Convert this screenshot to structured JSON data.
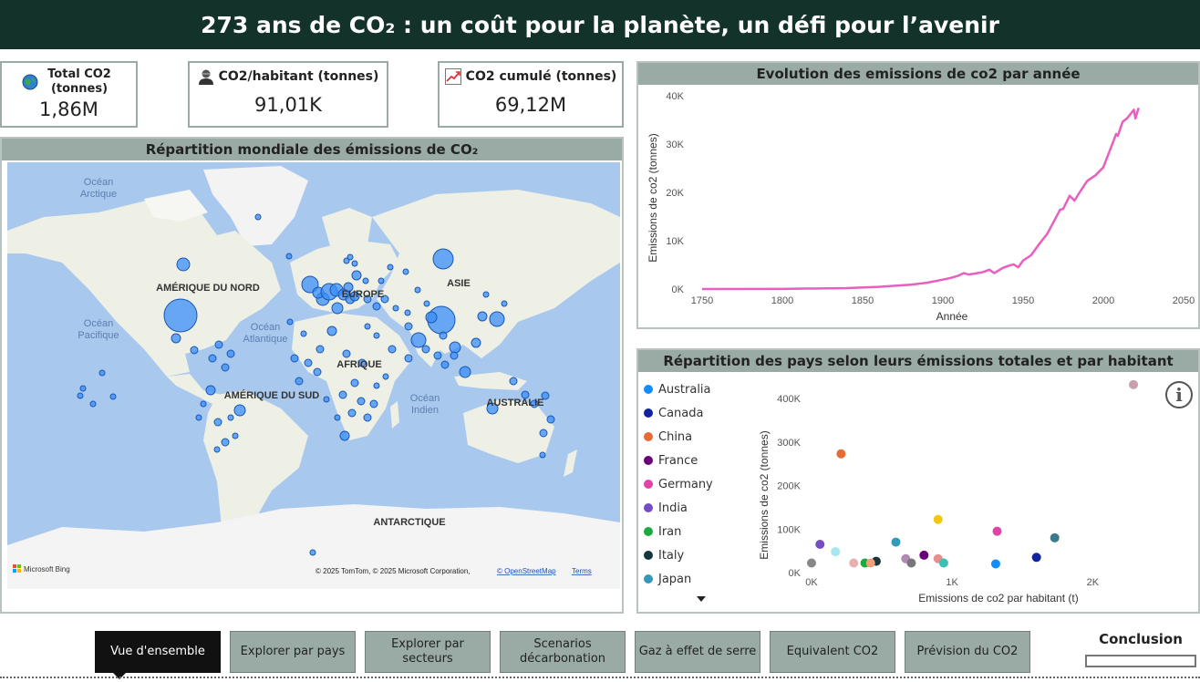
{
  "header": {
    "title": "273 ans de CO₂ : un coût pour la planète, un défi pour l’avenir"
  },
  "kpis": [
    {
      "label": "Total CO2 (tonnes)",
      "value": "1,86M",
      "icon": "globe-icon"
    },
    {
      "label": "CO2/habitant (tonnes)",
      "value": "91,01K",
      "icon": "person-icon"
    },
    {
      "label": "CO2 cumulé (tonnes)",
      "value": "69,12M",
      "icon": "chart-up-icon"
    }
  ],
  "map": {
    "title": "Répartition mondiale des émissions de CO₂",
    "labels": {
      "ocean_arctique": "Océan Arctique",
      "ocean_pacifique": "Océan Pacifique",
      "ocean_atlantique": "Océan Atlantique",
      "ocean_indien": "Océan Indien",
      "amerique_nord": "AMÉRIQUE DU NORD",
      "amerique_sud": "AMÉRIQUE DU SUD",
      "europe": "EUROPE",
      "afrique": "AFRIQUE",
      "asie": "ASIE",
      "australie": "AUSTRALIE",
      "antarctique": "ANTARCTIQUE"
    },
    "attribution": "© 2025 TomTom, © 2025 Microsoft Corporation,",
    "osm_link": "© OpenStreetMap",
    "terms_link": "Terms",
    "bing_logo": "Microsoft Bing"
  },
  "line_chart": {
    "title": "Evolution des emissions de co2 par année"
  },
  "scatter_chart": {
    "title": "Répartition des pays selon leurs émissions totales et par habitant"
  },
  "chart_data": [
    {
      "type": "line",
      "title": "Evolution des emissions de co2 par année",
      "xlabel": "Année",
      "ylabel": "Emissions de co2 (tonnes)",
      "xlim": [
        1750,
        2050
      ],
      "ylim": [
        0,
        40000
      ],
      "x_ticks": [
        "1750",
        "1800",
        "1850",
        "1900",
        "1950",
        "2000",
        "2050"
      ],
      "y_ticks": [
        "0K",
        "10K",
        "20K",
        "30K",
        "40K"
      ],
      "color": "#e75fbf",
      "x": [
        1750,
        1800,
        1840,
        1860,
        1880,
        1890,
        1900,
        1905,
        1910,
        1913,
        1916,
        1920,
        1925,
        1929,
        1932,
        1937,
        1940,
        1944,
        1947,
        1950,
        1955,
        1960,
        1965,
        1970,
        1973,
        1975,
        1979,
        1982,
        1986,
        1990,
        1995,
        2000,
        2005,
        2008,
        2009,
        2012,
        2015,
        2019,
        2020,
        2022
      ],
      "y": [
        10,
        30,
        200,
        450,
        900,
        1300,
        1950,
        2300,
        2800,
        3300,
        3000,
        3200,
        3500,
        4000,
        3300,
        4300,
        4700,
        5100,
        4500,
        5900,
        7000,
        9300,
        11400,
        14500,
        16400,
        16600,
        19300,
        18300,
        20400,
        22400,
        23500,
        25200,
        29500,
        32100,
        31700,
        34600,
        35400,
        37100,
        35300,
        37500
      ]
    },
    {
      "type": "scatter",
      "title": "Répartition des pays selon leurs émissions totales et par habitant",
      "xlabel": "Emissions de co2 par habitant (t)",
      "ylabel": "Emissions de co2 (tonnes)",
      "xlim": [
        0,
        2400
      ],
      "ylim": [
        0,
        440000
      ],
      "x_ticks": [
        "0K",
        "1K",
        "2K"
      ],
      "y_ticks": [
        "0K",
        "100K",
        "200K",
        "300K",
        "400K"
      ],
      "legend": [
        {
          "name": "Australia",
          "color": "#118dff"
        },
        {
          "name": "Canada",
          "color": "#12239e"
        },
        {
          "name": "China",
          "color": "#e66c37"
        },
        {
          "name": "France",
          "color": "#6b007b"
        },
        {
          "name": "Germany",
          "color": "#e044a7"
        },
        {
          "name": "India",
          "color": "#744ec2"
        },
        {
          "name": "Iran",
          "color": "#1aab40"
        },
        {
          "name": "Italy",
          "color": "#15373b"
        },
        {
          "name": "Japan",
          "color": "#3599b8"
        }
      ],
      "points": [
        {
          "x": 1310,
          "y": 20000,
          "color": "#118dff"
        },
        {
          "x": 1600,
          "y": 35000,
          "color": "#12239e"
        },
        {
          "x": 210,
          "y": 273000,
          "color": "#e66c37"
        },
        {
          "x": 800,
          "y": 40000,
          "color": "#6b007b"
        },
        {
          "x": 1320,
          "y": 95000,
          "color": "#e044a7"
        },
        {
          "x": 60,
          "y": 65000,
          "color": "#744ec2"
        },
        {
          "x": 380,
          "y": 22000,
          "color": "#1aab40"
        },
        {
          "x": 460,
          "y": 26000,
          "color": "#15373b"
        },
        {
          "x": 600,
          "y": 70000,
          "color": "#3599b8"
        },
        {
          "x": 900,
          "y": 122000,
          "color": "#f2c80f"
        },
        {
          "x": 1730,
          "y": 80000,
          "color": "#3b7a8a"
        },
        {
          "x": 170,
          "y": 48000,
          "color": "#a5e6f0"
        },
        {
          "x": 300,
          "y": 22000,
          "color": "#e6b0b0"
        },
        {
          "x": 420,
          "y": 22000,
          "color": "#f2a07a"
        },
        {
          "x": 670,
          "y": 32000,
          "color": "#b08ab5"
        },
        {
          "x": 710,
          "y": 22000,
          "color": "#777777"
        },
        {
          "x": 900,
          "y": 32000,
          "color": "#e89090"
        },
        {
          "x": 940,
          "y": 22000,
          "color": "#3cc0b0"
        },
        {
          "x": 0,
          "y": 22000,
          "color": "#888888"
        },
        {
          "x": 2290,
          "y": 432000,
          "color": "#c8a0b0"
        }
      ]
    }
  ],
  "nav": [
    {
      "label": "Vue d'ensemble",
      "active": true
    },
    {
      "label": "Explorer par pays"
    },
    {
      "label": "Explorer par secteurs"
    },
    {
      "label": "Scenarios décarbonation"
    },
    {
      "label": "Gaz à effet de serre"
    },
    {
      "label": "Equivalent CO2"
    },
    {
      "label": "Prévision du CO2"
    }
  ],
  "conclusion": {
    "label": "Conclusion"
  }
}
